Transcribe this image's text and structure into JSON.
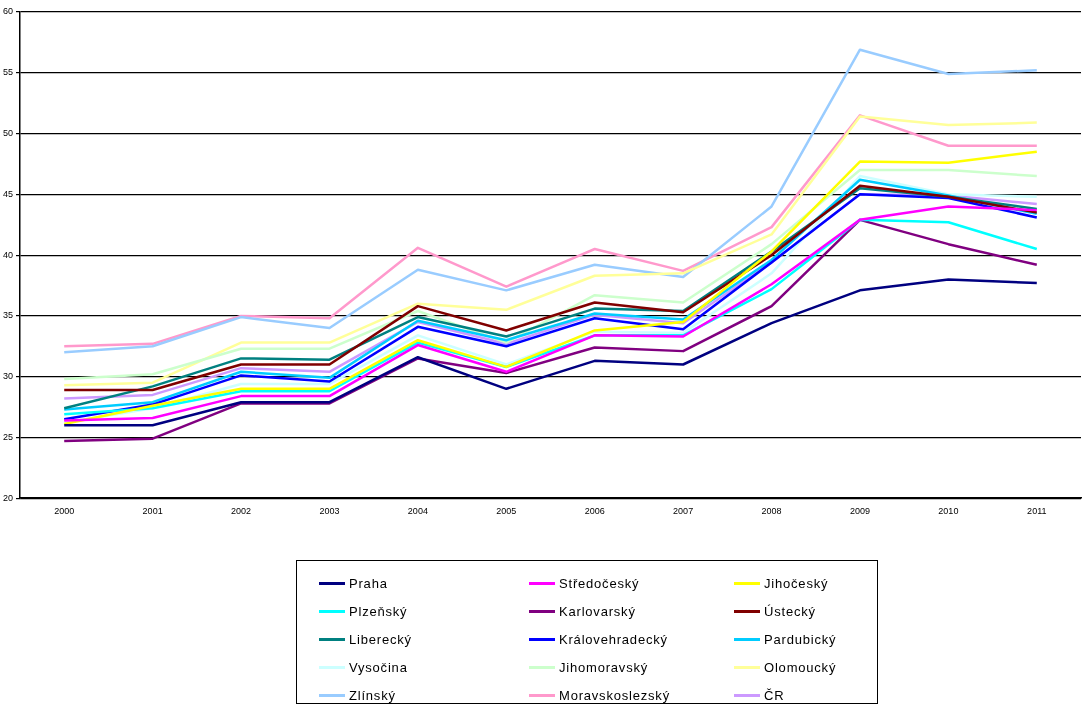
{
  "chart_data": {
    "type": "line",
    "categories": [
      "2000",
      "2001",
      "2002",
      "2003",
      "2004",
      "2005",
      "2006",
      "2007",
      "2008",
      "2009",
      "2010",
      "2011"
    ],
    "ylim": [
      20,
      60
    ],
    "yticks": [
      20,
      25,
      30,
      35,
      40,
      45,
      50,
      55,
      60
    ],
    "grid": "y",
    "legend": "bottom",
    "marker": "none",
    "line_style": "solid",
    "series": [
      {
        "name": "Praha",
        "color": "#000080",
        "values": [
          26.0,
          26.0,
          27.9,
          27.9,
          31.6,
          29.0,
          31.3,
          31.0,
          34.4,
          37.1,
          38.0,
          37.7
        ]
      },
      {
        "name": "Středočeský",
        "color": "#ff00ff",
        "values": [
          26.4,
          26.6,
          28.4,
          28.4,
          32.6,
          30.4,
          33.4,
          33.3,
          37.6,
          42.9,
          44.0,
          43.7
        ]
      },
      {
        "name": "Jihočeský",
        "color": "#ffff00",
        "values": [
          26.1,
          27.6,
          29.0,
          29.0,
          33.0,
          30.8,
          33.8,
          34.5,
          40.3,
          47.7,
          47.6,
          48.5
        ]
      },
      {
        "name": "Plzeňský",
        "color": "#00ffff",
        "values": [
          26.9,
          27.4,
          28.8,
          28.8,
          32.8,
          30.8,
          33.4,
          33.4,
          37.2,
          42.9,
          42.7,
          40.5
        ]
      },
      {
        "name": "Karlovarský",
        "color": "#800080",
        "values": [
          24.7,
          24.9,
          27.8,
          27.8,
          31.5,
          30.3,
          32.4,
          32.1,
          35.8,
          42.9,
          40.9,
          39.2
        ]
      },
      {
        "name": "Ústecký",
        "color": "#800000",
        "values": [
          28.9,
          28.9,
          31.0,
          31.0,
          35.8,
          33.8,
          36.1,
          35.3,
          40.0,
          45.7,
          44.8,
          43.5
        ]
      },
      {
        "name": "Liberecký",
        "color": "#008080",
        "values": [
          27.4,
          29.2,
          31.5,
          31.4,
          34.9,
          33.3,
          35.6,
          35.4,
          40.3,
          45.5,
          44.8,
          43.8
        ]
      },
      {
        "name": "Královehradecký",
        "color": "#0000ff",
        "values": [
          26.5,
          27.7,
          30.1,
          29.6,
          34.1,
          32.5,
          34.8,
          33.9,
          39.4,
          45.0,
          44.7,
          43.1
        ]
      },
      {
        "name": "Pardubický",
        "color": "#00ccff",
        "values": [
          27.3,
          27.9,
          30.4,
          29.9,
          34.6,
          33.0,
          35.2,
          34.7,
          39.6,
          46.2,
          44.9,
          43.4
        ]
      },
      {
        "name": "Vysočina",
        "color": "#ccffff",
        "values": [
          26.2,
          27.4,
          29.4,
          29.4,
          33.4,
          31.0,
          33.7,
          33.6,
          38.5,
          46.5,
          45.0,
          44.8
        ]
      },
      {
        "name": "Jihomoravský",
        "color": "#ccffcc",
        "values": [
          29.8,
          30.2,
          32.3,
          32.3,
          35.4,
          32.8,
          36.7,
          36.1,
          40.9,
          47.0,
          47.0,
          46.5
        ]
      },
      {
        "name": "Olomoucký",
        "color": "#ffff99",
        "values": [
          29.3,
          29.5,
          32.8,
          32.8,
          36.0,
          35.5,
          38.3,
          38.5,
          41.7,
          51.4,
          50.7,
          50.9
        ]
      },
      {
        "name": "Zlínský",
        "color": "#99ccff",
        "values": [
          32.0,
          32.5,
          34.9,
          34.0,
          38.8,
          37.1,
          39.2,
          38.2,
          44.0,
          56.9,
          54.9,
          55.2
        ]
      },
      {
        "name": "Moravskoslezský",
        "color": "#ff99cc",
        "values": [
          32.5,
          32.7,
          35.0,
          34.8,
          40.6,
          37.4,
          40.5,
          38.7,
          42.3,
          51.5,
          49.0,
          49.0
        ]
      },
      {
        "name": "ČR",
        "color": "#cc99ff",
        "values": [
          28.2,
          28.5,
          30.7,
          30.4,
          34.5,
          32.7,
          35.1,
          34.4,
          39.4,
          45.0,
          44.9,
          44.2
        ]
      }
    ]
  }
}
